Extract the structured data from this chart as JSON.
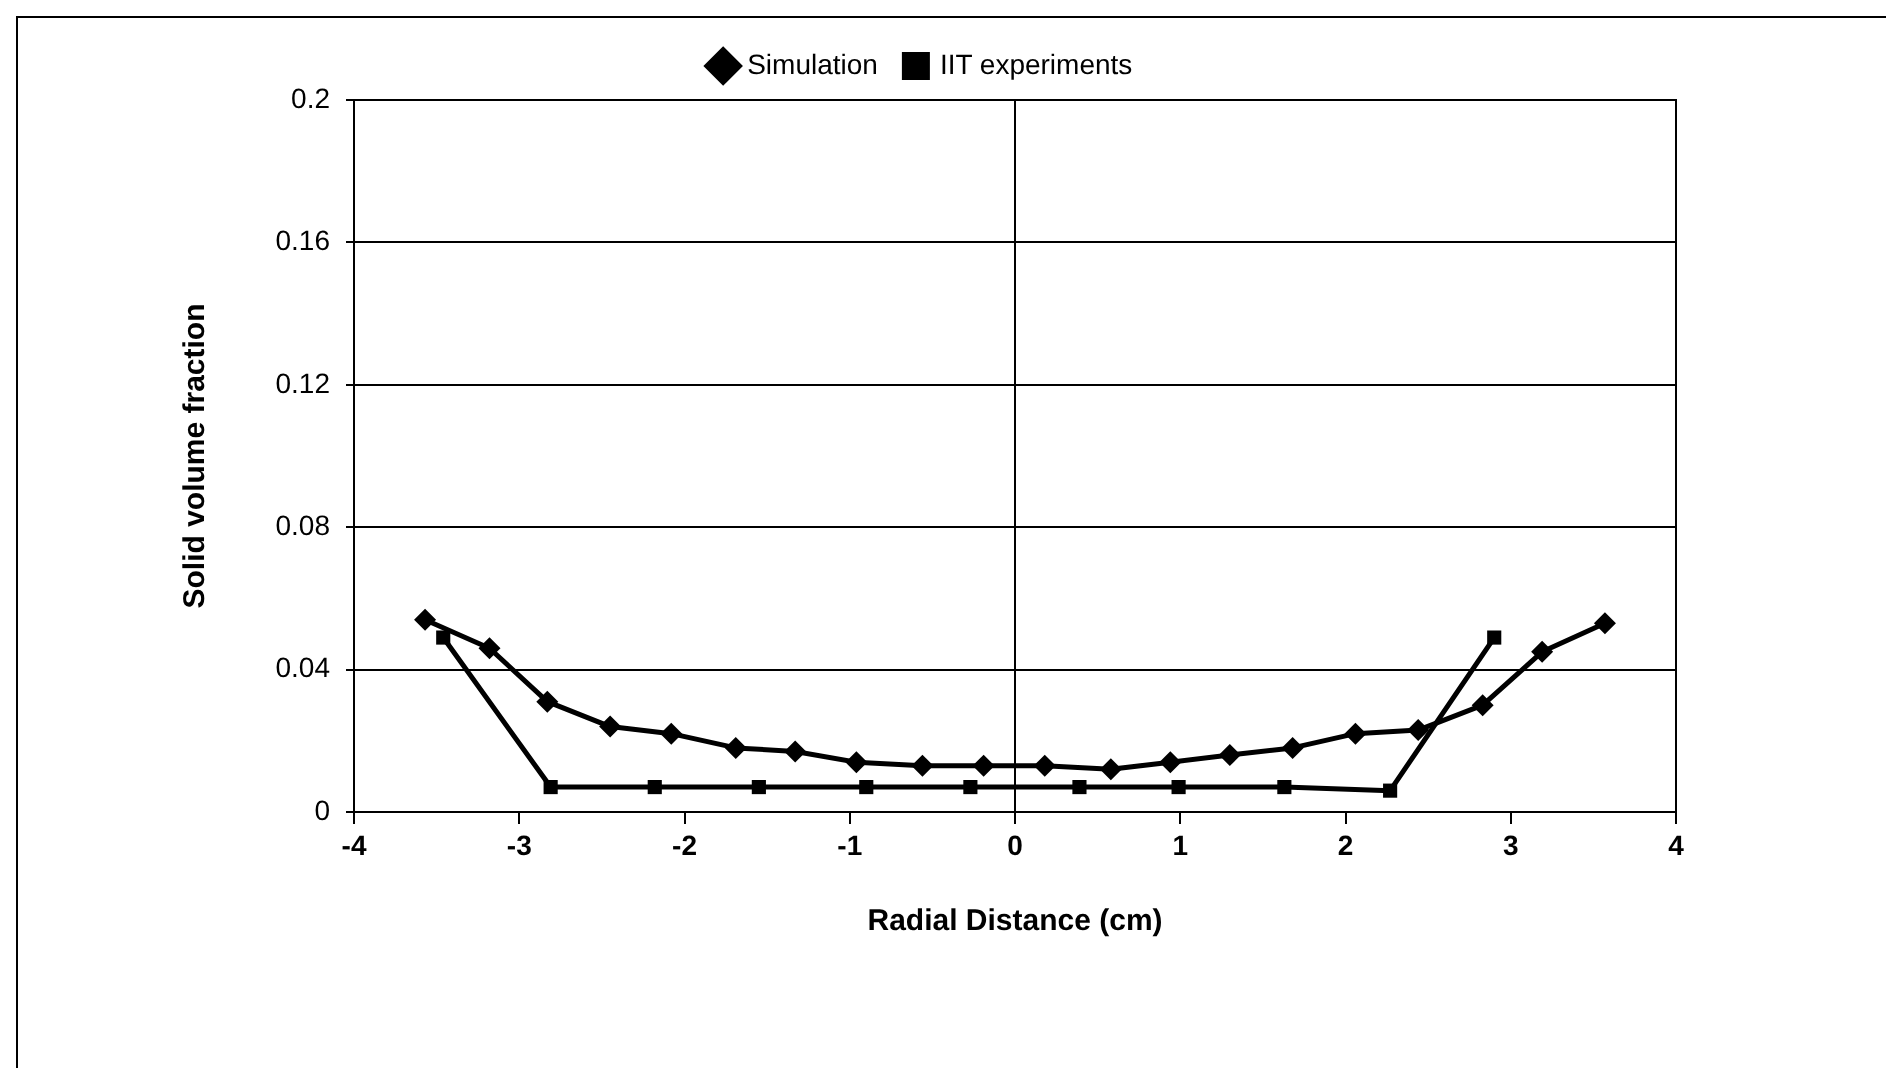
{
  "chart_data": {
    "type": "line",
    "xlabel": "Radial Distance (cm)",
    "ylabel": "Solid volume fraction",
    "xlim": [
      -4,
      4
    ],
    "xticks": [
      -4,
      -3,
      -2,
      -1,
      0,
      1,
      2,
      3,
      4
    ],
    "ylim": [
      0,
      0.2
    ],
    "yticks": [
      0,
      0.04,
      0.08,
      0.12,
      0.16,
      0.2
    ],
    "grid": "y",
    "legend": "top",
    "line_style": "solid",
    "ref_lines": [
      {
        "axis": "x",
        "value": 0,
        "color": "#000000"
      }
    ],
    "series": [
      {
        "name": "Simulation",
        "color": "#000000",
        "marker": "diamond",
        "x": [
          -3.57,
          -3.18,
          -2.83,
          -2.45,
          -2.08,
          -1.69,
          -1.33,
          -0.96,
          -0.56,
          -0.19,
          0.18,
          0.58,
          0.94,
          1.3,
          1.68,
          2.06,
          2.44,
          2.83,
          3.19,
          3.57
        ],
        "values": [
          0.054,
          0.046,
          0.031,
          0.024,
          0.022,
          0.018,
          0.017,
          0.014,
          0.013,
          0.013,
          0.013,
          0.012,
          0.014,
          0.016,
          0.018,
          0.022,
          0.023,
          0.03,
          0.045,
          0.053
        ]
      },
      {
        "name": "IIT experiments",
        "color": "#000000",
        "marker": "square",
        "x": [
          -3.46,
          -2.81,
          -2.18,
          -1.55,
          -0.9,
          -0.27,
          0.39,
          0.99,
          1.63,
          2.27,
          2.9
        ],
        "values": [
          0.049,
          0.007,
          0.007,
          0.007,
          0.007,
          0.007,
          0.007,
          0.007,
          0.007,
          0.006,
          0.049
        ]
      }
    ]
  }
}
